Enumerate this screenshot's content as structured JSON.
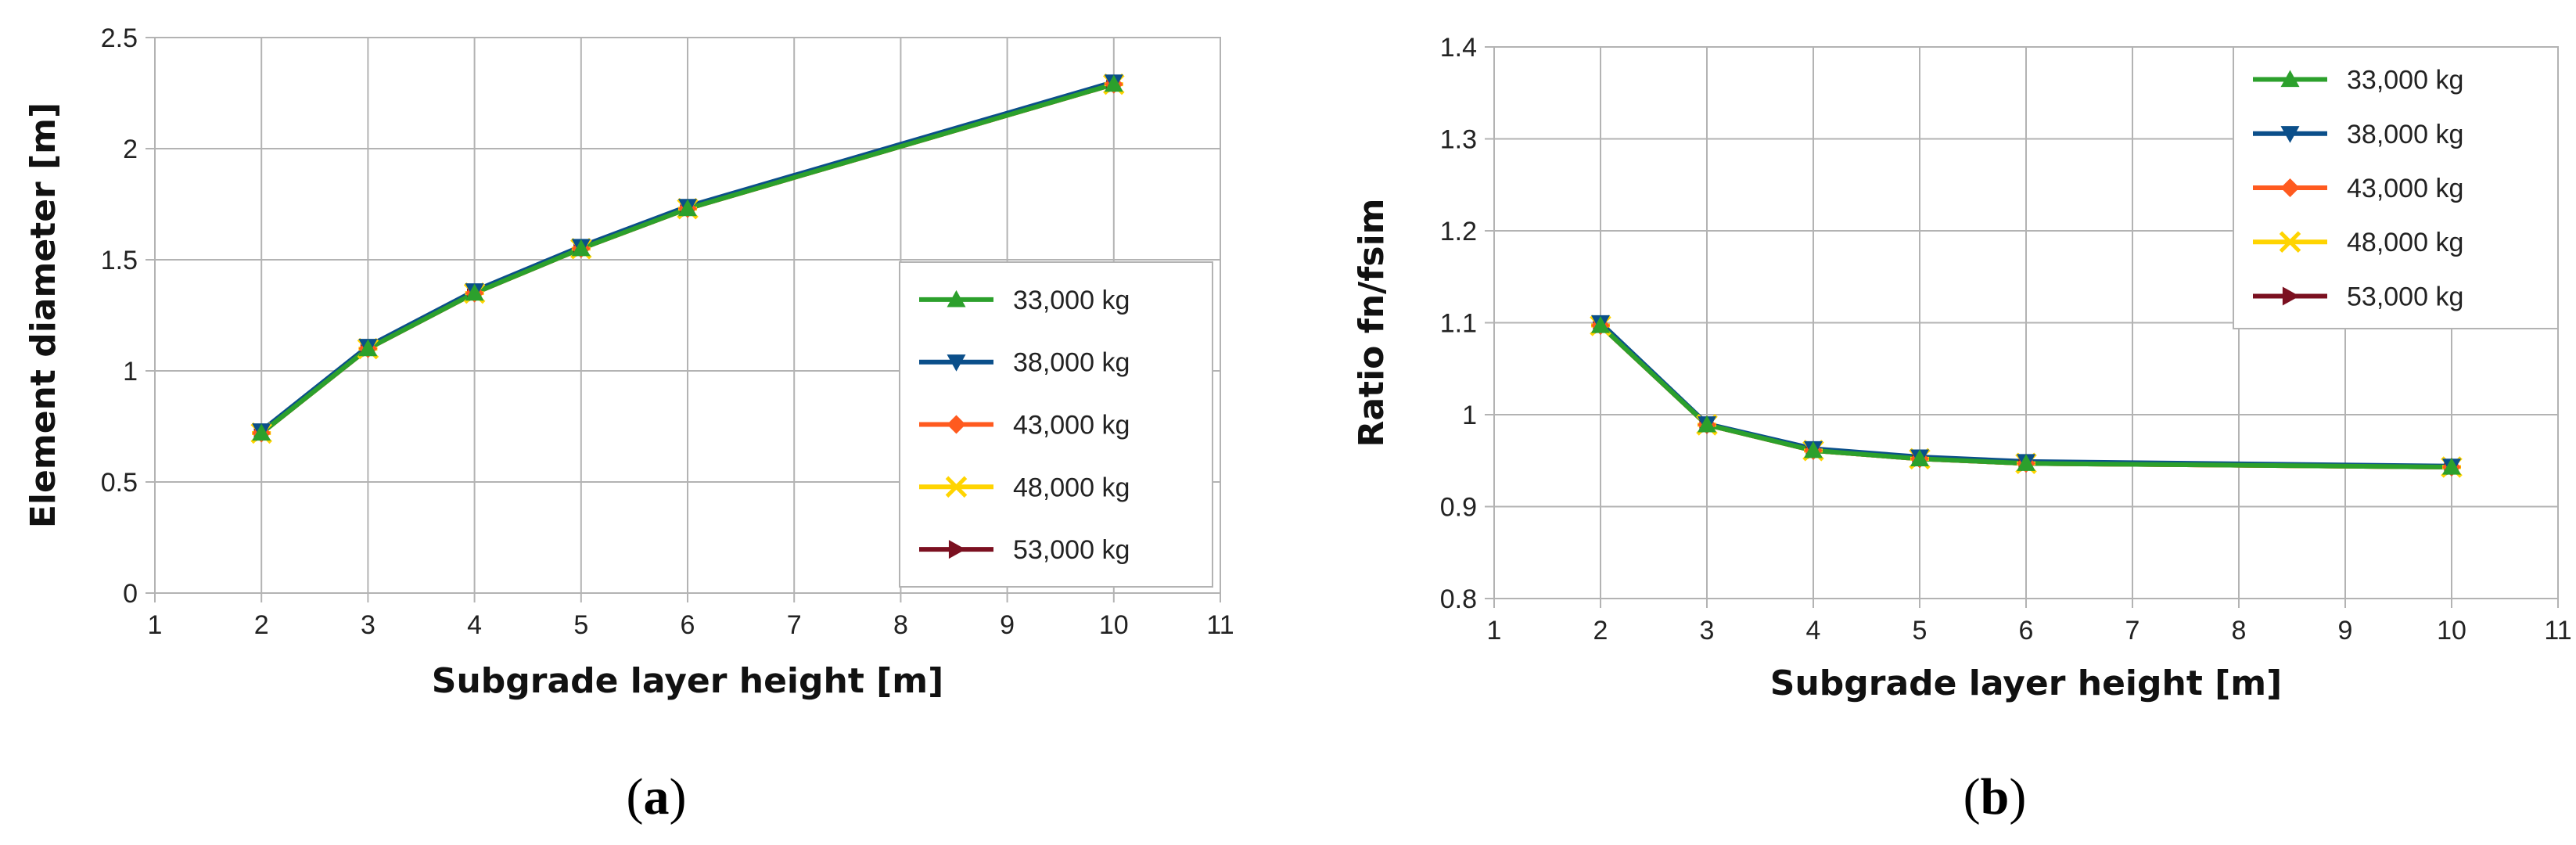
{
  "chart_data": [
    {
      "type": "line",
      "panel_label": {
        "open": "(",
        "letter": "a",
        "close": ")"
      },
      "title": "",
      "xlabel": "Subgrade layer height  [m]",
      "ylabel": "Element diameter  [m]",
      "xlim": [
        1,
        11
      ],
      "ylim": [
        0,
        2.5
      ],
      "xticks": [
        "1",
        "2",
        "3",
        "4",
        "5",
        "6",
        "7",
        "8",
        "9",
        "10",
        "11"
      ],
      "yticks": [
        "0",
        "0.5",
        "1",
        "1.5",
        "2",
        "2.5"
      ],
      "grid": true,
      "legend_position": "bottom-right",
      "x": [
        2,
        3,
        4,
        5,
        6,
        10
      ],
      "series": [
        {
          "name": "33,000 kg",
          "color": "#2ca02c",
          "marker": "triangle-up",
          "values": [
            0.72,
            1.1,
            1.35,
            1.55,
            1.73,
            2.29
          ]
        },
        {
          "name": "38,000 kg",
          "color": "#0b4f8a",
          "marker": "triangle-down",
          "values": [
            0.73,
            1.11,
            1.36,
            1.56,
            1.74,
            2.3
          ]
        },
        {
          "name": "43,000 kg",
          "color": "#ff5a1f",
          "marker": "diamond",
          "values": [
            0.72,
            1.1,
            1.35,
            1.55,
            1.73,
            2.29
          ]
        },
        {
          "name": "48,000 kg",
          "color": "#ffd400",
          "marker": "cross",
          "values": [
            0.72,
            1.1,
            1.35,
            1.55,
            1.73,
            2.29
          ]
        },
        {
          "name": "53,000 kg",
          "color": "#7b1020",
          "marker": "triangle-right",
          "values": [
            0.72,
            1.1,
            1.35,
            1.55,
            1.73,
            2.29
          ]
        }
      ]
    },
    {
      "type": "line",
      "panel_label": {
        "open": "(",
        "letter": "b",
        "close": ")"
      },
      "title": "",
      "xlabel": "Subgrade layer height  [m]",
      "ylabel": "Ratio fn/fsim",
      "xlim": [
        1,
        11
      ],
      "ylim": [
        0.8,
        1.4
      ],
      "xticks": [
        "1",
        "2",
        "3",
        "4",
        "5",
        "6",
        "7",
        "8",
        "9",
        "10",
        "11"
      ],
      "yticks": [
        "0.8",
        "0.9",
        "1",
        "1.1",
        "1.2",
        "1.3",
        "1.4"
      ],
      "grid": true,
      "legend_position": "top-right",
      "x": [
        2,
        3,
        4,
        5,
        6,
        10
      ],
      "series": [
        {
          "name": "33,000 kg",
          "color": "#2ca02c",
          "marker": "triangle-up",
          "values": [
            1.097,
            0.989,
            0.961,
            0.952,
            0.947,
            0.943
          ]
        },
        {
          "name": "38,000 kg",
          "color": "#0b4f8a",
          "marker": "triangle-down",
          "values": [
            1.1,
            0.99,
            0.963,
            0.954,
            0.949,
            0.944
          ]
        },
        {
          "name": "43,000 kg",
          "color": "#ff5a1f",
          "marker": "diamond",
          "values": [
            1.097,
            0.989,
            0.961,
            0.952,
            0.947,
            0.943
          ]
        },
        {
          "name": "48,000 kg",
          "color": "#ffd400",
          "marker": "cross",
          "values": [
            1.097,
            0.989,
            0.961,
            0.952,
            0.947,
            0.943
          ]
        },
        {
          "name": "53,000 kg",
          "color": "#7b1020",
          "marker": "triangle-right",
          "values": [
            1.097,
            0.989,
            0.961,
            0.952,
            0.947,
            0.943
          ]
        }
      ]
    }
  ]
}
